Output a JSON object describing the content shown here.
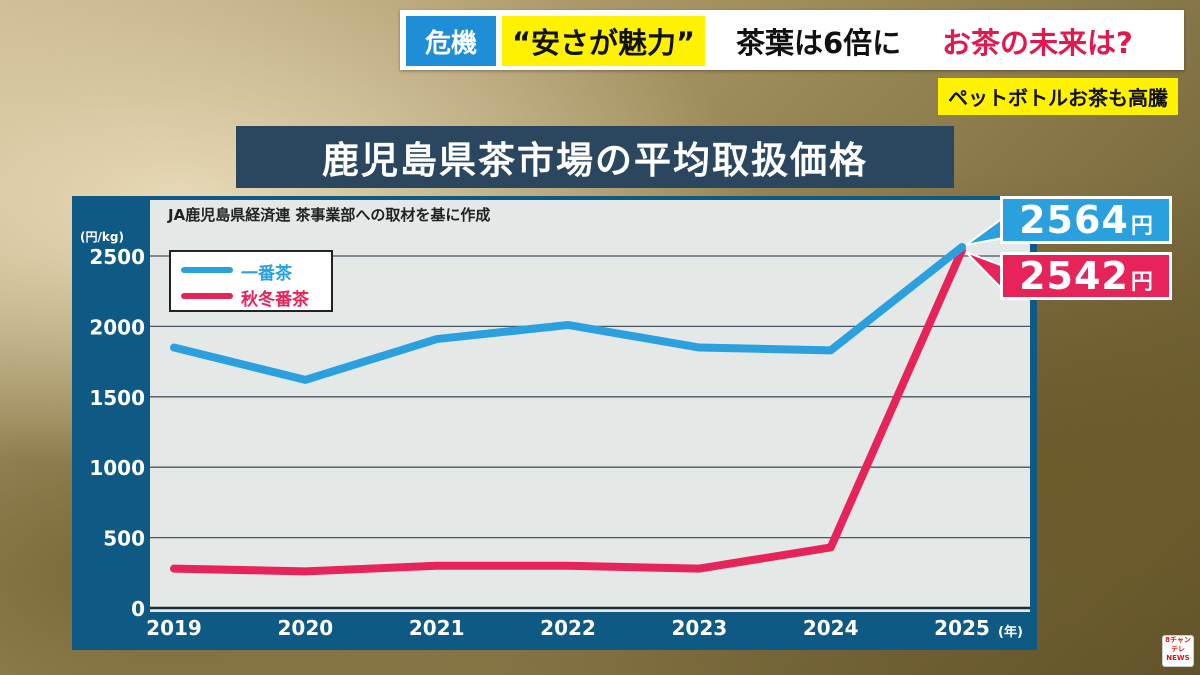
{
  "banner": {
    "crisis_tag": "危機",
    "cheap_tag": "“安さが魅力”",
    "headline_black": "茶葉は6倍に",
    "headline_red": "お茶の未来は?",
    "subtag": "ペットボトルお茶も高騰"
  },
  "chart_title": "鹿児島県茶市場の平均取扱価格",
  "source_note": "JA鹿児島県経済連 茶事業部への取材を基に作成",
  "callouts": {
    "ichiban_value": "2564",
    "ichiban_unit": "円",
    "shuto_value": "2542",
    "shuto_unit": "円"
  },
  "colors": {
    "ichiban": "#2aa0de",
    "shuto": "#e6245a",
    "panel": "#0e5a84",
    "title_bg": "#2b4760"
  },
  "logo_text": "8チャンテレNEWS",
  "chart_data": {
    "type": "line",
    "title": "鹿児島県茶市場の平均取扱価格",
    "ylabel": "(円/kg)",
    "xlabel": "(年)",
    "ylim": [
      0,
      2500
    ],
    "yticks": [
      0,
      500,
      1000,
      1500,
      2000,
      2500
    ],
    "categories": [
      "2019",
      "2020",
      "2021",
      "2022",
      "2023",
      "2024",
      "2025"
    ],
    "grid": true,
    "legend": "top-left",
    "series": [
      {
        "name": "一番茶",
        "values": [
          1850,
          1620,
          1910,
          2010,
          1850,
          1830,
          2564
        ]
      },
      {
        "name": "秋冬番茶",
        "values": [
          280,
          260,
          300,
          300,
          280,
          430,
          2542
        ]
      }
    ]
  }
}
